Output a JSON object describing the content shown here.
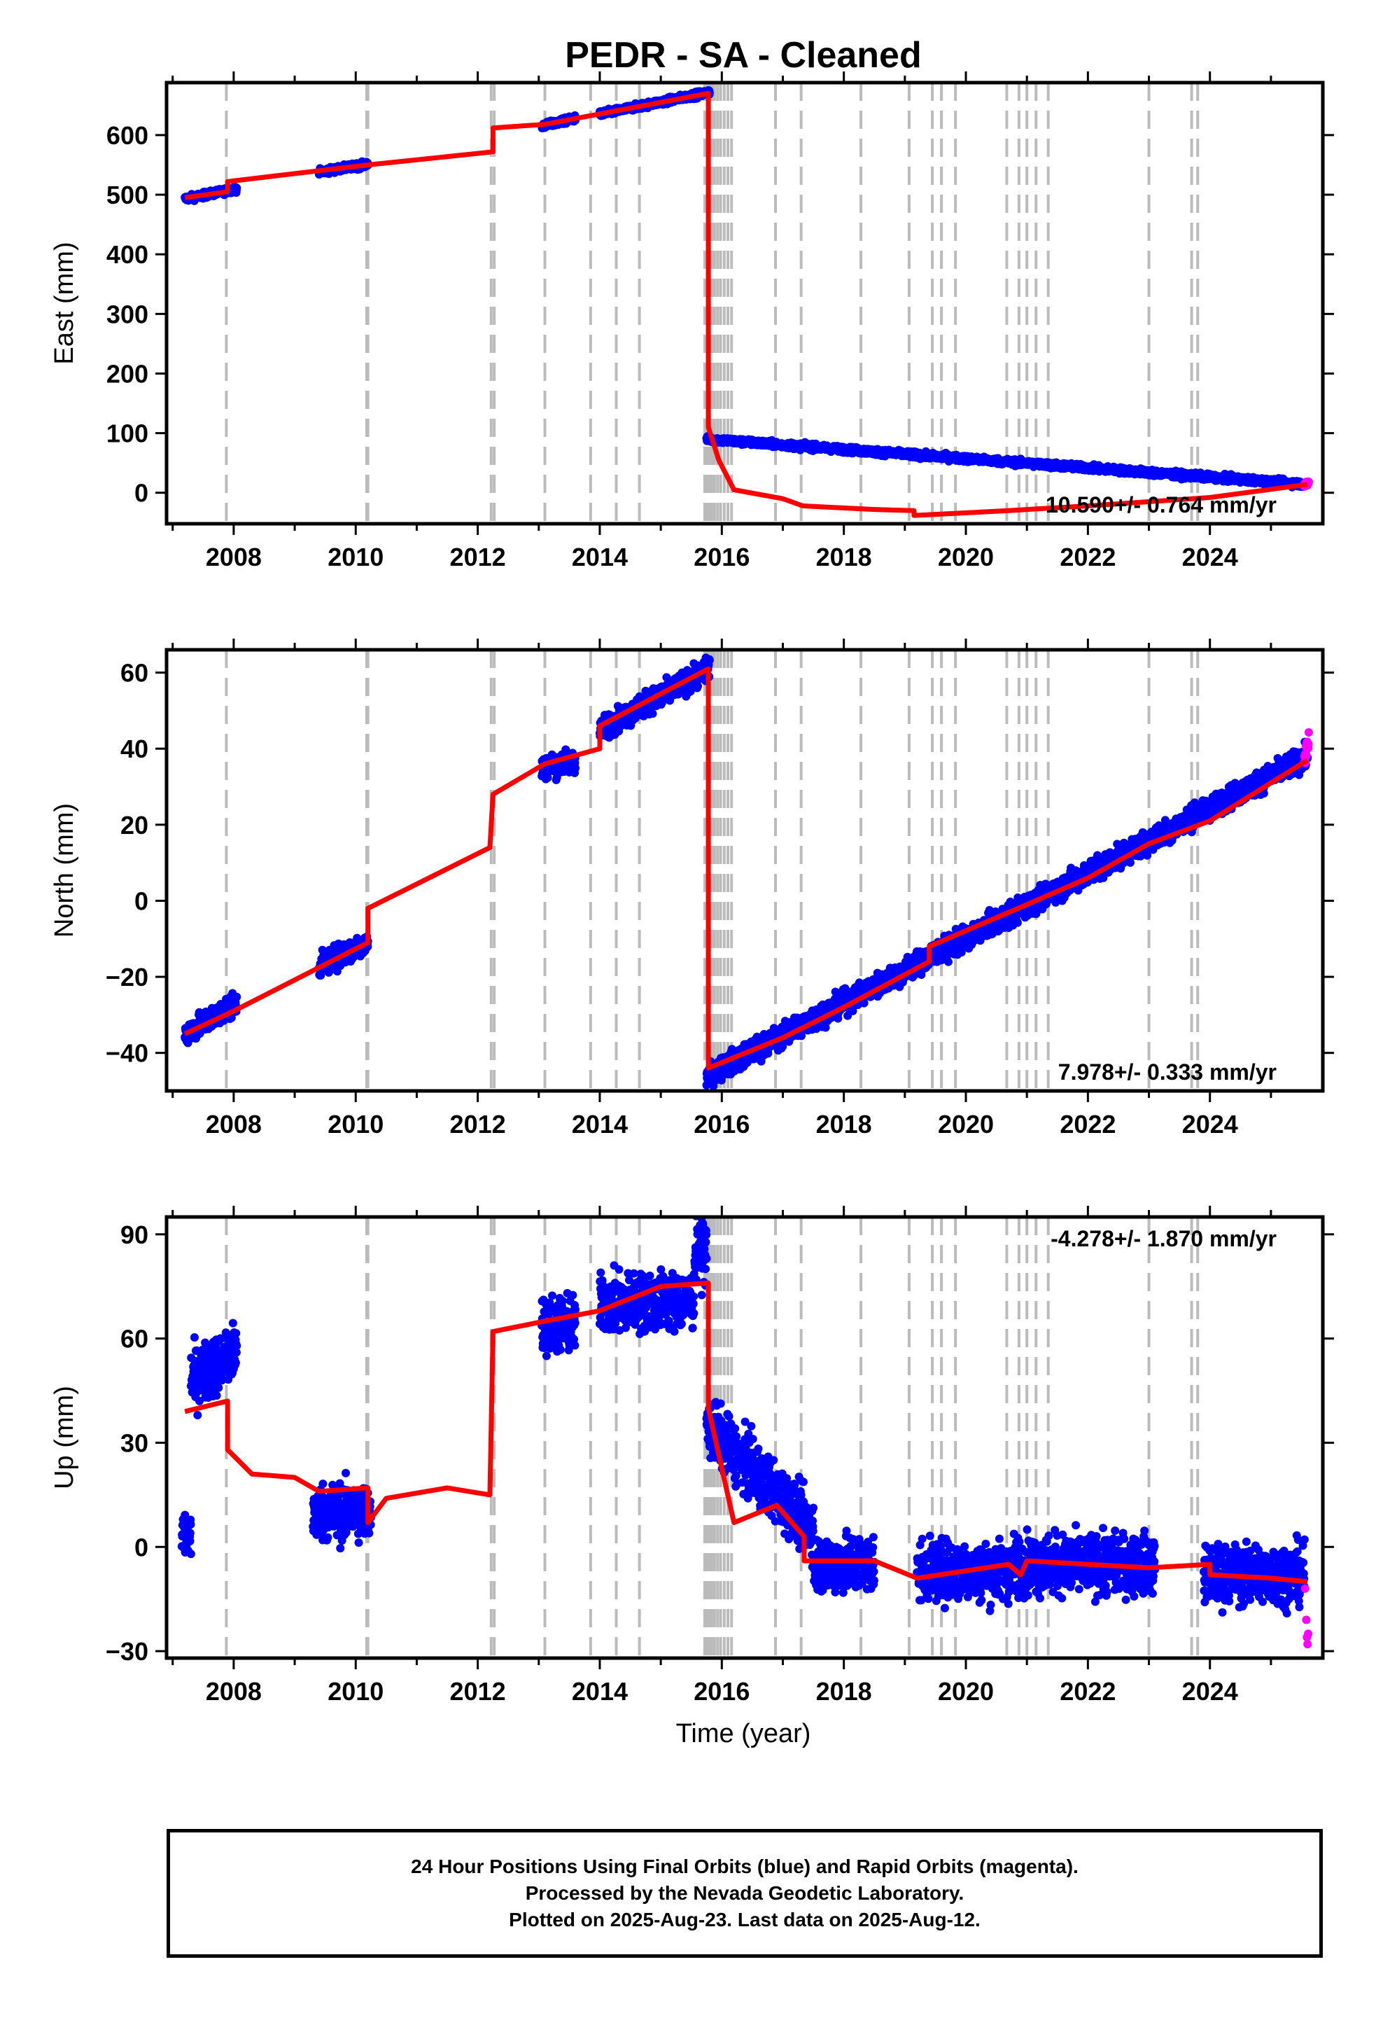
{
  "title": "PEDR  - SA - Cleaned",
  "x_axis_label": "Time (year)",
  "footer": {
    "line1": "24 Hour Positions Using Final Orbits (blue) and Rapid Orbits (magenta).",
    "line2": "Processed by the Nevada Geodetic Laboratory.",
    "line3": "Plotted on 2025-Aug-23. Last data on 2025-Aug-12."
  },
  "colors": {
    "final_orbits": "#0000ff",
    "rapid_orbits": "#ff00ff",
    "model_fit": "#ff0000",
    "equipment_change_lines": "#bbbbbb"
  },
  "chart_data": [
    {
      "type": "scatter",
      "panel": "east",
      "ylabel": "East (mm)",
      "xlim": [
        2006.9,
        2025.85
      ],
      "ylim": [
        -52,
        688
      ],
      "xticks": [
        2008,
        2010,
        2012,
        2014,
        2016,
        2018,
        2020,
        2022,
        2024
      ],
      "yticks": [
        0,
        100,
        200,
        300,
        400,
        500,
        600
      ],
      "rate_text": "10.590+/- 0.764 mm/yr",
      "rate_position": "bottom-right",
      "gridlines": "dashed vertical lines at equipment / step epochs",
      "series": [
        {
          "name": "Final Orbits",
          "color": "blue",
          "segments": [
            {
              "from": 2007.2,
              "to": 2008.05,
              "start": 493,
              "end": 510
            },
            {
              "from": 2009.4,
              "to": 2010.2,
              "start": 538,
              "end": 551
            },
            {
              "from": 2013.05,
              "to": 2013.6,
              "start": 615,
              "end": 628
            },
            {
              "from": 2014.0,
              "to": 2015.8,
              "start": 635,
              "end": 672
            },
            {
              "from": 2015.75,
              "to": 2025.6,
              "start": 90,
              "end": 14
            }
          ]
        },
        {
          "name": "Rapid Orbits",
          "color": "magenta",
          "segments": [
            {
              "from": 2025.55,
              "to": 2025.62,
              "start": 14,
              "end": 16
            }
          ]
        },
        {
          "name": "Model fit",
          "color": "red",
          "points": [
            [
              2007.2,
              495
            ],
            [
              2007.9,
              505
            ],
            [
              2007.9,
              522
            ],
            [
              2010.2,
              550
            ],
            [
              2012.25,
              572
            ],
            [
              2012.25,
              612
            ],
            [
              2013.1,
              618
            ],
            [
              2015.78,
              670
            ],
            [
              2015.78,
              110
            ],
            [
              2015.95,
              55
            ],
            [
              2016.2,
              5
            ],
            [
              2017.0,
              -10
            ],
            [
              2017.33,
              -22
            ],
            [
              2018.5,
              -28
            ],
            [
              2019.15,
              -30
            ],
            [
              2019.15,
              -38
            ],
            [
              2020.7,
              -30
            ],
            [
              2021.0,
              -28
            ],
            [
              2022.0,
              -22
            ],
            [
              2023.0,
              -15
            ],
            [
              2024.0,
              -8
            ],
            [
              2025.6,
              14
            ]
          ]
        }
      ]
    },
    {
      "type": "scatter",
      "panel": "north",
      "ylabel": "North (mm)",
      "xlim": [
        2006.9,
        2025.85
      ],
      "ylim": [
        -50,
        66
      ],
      "xticks": [
        2008,
        2010,
        2012,
        2014,
        2016,
        2018,
        2020,
        2022,
        2024
      ],
      "yticks": [
        -40,
        -20,
        0,
        20,
        40,
        60
      ],
      "rate_text": "7.978+/- 0.333 mm/yr",
      "rate_position": "bottom-right",
      "series": [
        {
          "name": "Final Orbits",
          "color": "blue",
          "segments": [
            {
              "from": 2007.2,
              "to": 2008.05,
              "start": -35,
              "end": -27
            },
            {
              "from": 2009.4,
              "to": 2010.2,
              "start": -17,
              "end": -11
            },
            {
              "from": 2013.05,
              "to": 2013.6,
              "start": 35,
              "end": 37
            },
            {
              "from": 2014.0,
              "to": 2015.8,
              "start": 45,
              "end": 61
            },
            {
              "from": 2015.75,
              "to": 2025.6,
              "start": -46,
              "end": 38
            }
          ]
        },
        {
          "name": "Rapid Orbits",
          "color": "magenta",
          "segments": [
            {
              "from": 2025.55,
              "to": 2025.62,
              "start": 38,
              "end": 41
            }
          ]
        },
        {
          "name": "Model fit",
          "color": "red",
          "points": [
            [
              2007.2,
              -35
            ],
            [
              2008.0,
              -29
            ],
            [
              2010.2,
              -11
            ],
            [
              2010.2,
              -2
            ],
            [
              2012.2,
              14
            ],
            [
              2012.25,
              28
            ],
            [
              2013.1,
              36
            ],
            [
              2014.0,
              40
            ],
            [
              2014.0,
              46
            ],
            [
              2015.78,
              61
            ],
            [
              2015.78,
              -44
            ],
            [
              2017.0,
              -36
            ],
            [
              2018.0,
              -28
            ],
            [
              2019.4,
              -16
            ],
            [
              2019.4,
              -12
            ],
            [
              2021.0,
              -1
            ],
            [
              2022.0,
              6
            ],
            [
              2023.0,
              15
            ],
            [
              2024.0,
              21
            ],
            [
              2025.6,
              37
            ]
          ]
        }
      ]
    },
    {
      "type": "scatter",
      "panel": "up",
      "ylabel": "Up (mm)",
      "xlim": [
        2006.9,
        2025.85
      ],
      "ylim": [
        -32,
        95
      ],
      "xticks": [
        2008,
        2010,
        2012,
        2014,
        2016,
        2018,
        2020,
        2022,
        2024
      ],
      "yticks": [
        -30,
        0,
        30,
        60,
        90
      ],
      "rate_text": "-4.278+/- 1.870 mm/yr",
      "rate_position": "top-right",
      "series": [
        {
          "name": "Final Orbits",
          "color": "blue",
          "segments": [
            {
              "from": 2007.15,
              "to": 2007.3,
              "start": 4,
              "end": 4
            },
            {
              "from": 2007.3,
              "to": 2008.05,
              "start": 48,
              "end": 56
            },
            {
              "from": 2009.3,
              "to": 2010.25,
              "start": 10,
              "end": 10
            },
            {
              "from": 2013.05,
              "to": 2013.6,
              "start": 64,
              "end": 64
            },
            {
              "from": 2014.0,
              "to": 2015.55,
              "start": 70,
              "end": 71
            },
            {
              "from": 2015.55,
              "to": 2015.75,
              "start": 85,
              "end": 85
            },
            {
              "from": 2015.75,
              "to": 2017.5,
              "start": 35,
              "end": 5
            },
            {
              "from": 2017.5,
              "to": 2018.5,
              "start": -5,
              "end": -5
            },
            {
              "from": 2019.2,
              "to": 2020.75,
              "start": -7,
              "end": -7
            },
            {
              "from": 2020.75,
              "to": 2023.1,
              "start": -5,
              "end": -5
            },
            {
              "from": 2023.9,
              "to": 2025.55,
              "start": -8,
              "end": -8
            }
          ]
        },
        {
          "name": "Rapid Orbits",
          "color": "magenta",
          "points": [
            [
              2025.56,
              -12
            ],
            [
              2025.58,
              -21
            ],
            [
              2025.59,
              -26
            ],
            [
              2025.6,
              -28
            ],
            [
              2025.61,
              -25
            ]
          ]
        },
        {
          "name": "Model fit",
          "color": "red",
          "points": [
            [
              2007.2,
              39
            ],
            [
              2007.9,
              42
            ],
            [
              2007.9,
              28
            ],
            [
              2008.3,
              21
            ],
            [
              2009.0,
              20
            ],
            [
              2009.4,
              16
            ],
            [
              2010.2,
              17
            ],
            [
              2010.2,
              7
            ],
            [
              2010.5,
              14
            ],
            [
              2011.5,
              17
            ],
            [
              2012.2,
              15
            ],
            [
              2012.25,
              62
            ],
            [
              2013.1,
              65
            ],
            [
              2014.0,
              68
            ],
            [
              2015.0,
              75
            ],
            [
              2015.78,
              76
            ],
            [
              2015.78,
              40
            ],
            [
              2016.2,
              7
            ],
            [
              2016.9,
              12
            ],
            [
              2017.35,
              3
            ],
            [
              2017.35,
              -4
            ],
            [
              2018.5,
              -4
            ],
            [
              2019.2,
              -9
            ],
            [
              2020.7,
              -5
            ],
            [
              2020.9,
              -8
            ],
            [
              2021.0,
              -4
            ],
            [
              2022.0,
              -5
            ],
            [
              2023.0,
              -6
            ],
            [
              2024.0,
              -5
            ],
            [
              2024.0,
              -8
            ],
            [
              2025.0,
              -9
            ],
            [
              2025.6,
              -10
            ]
          ]
        }
      ]
    }
  ],
  "step_epochs_dashed": [
    2007.88,
    2010.18,
    2010.2,
    2012.22,
    2012.27,
    2013.1,
    2013.85,
    2014.27,
    2014.65,
    2015.72,
    2015.76,
    2015.8,
    2015.84,
    2015.88,
    2015.93,
    2015.98,
    2016.04,
    2016.1,
    2016.16,
    2016.88,
    2017.3,
    2018.28,
    2019.07,
    2019.45,
    2019.6,
    2019.83,
    2020.67,
    2020.87,
    2021.0,
    2021.15,
    2021.35,
    2023.0,
    2023.7,
    2023.8
  ]
}
